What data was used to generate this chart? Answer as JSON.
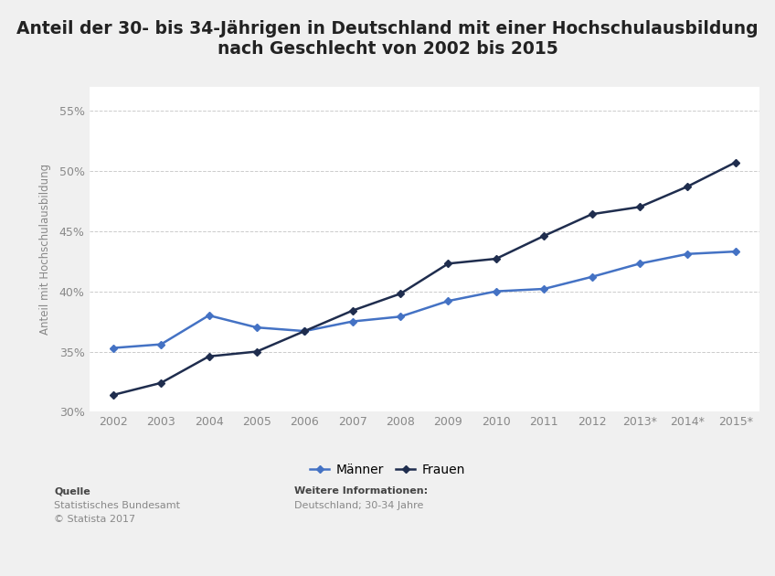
{
  "title_line1": "Anteil der 30- bis 34-Jährigen in Deutschland mit einer Hochschulausbildung",
  "title_line2": "nach Geschlecht von 2002 bis 2015",
  "ylabel": "Anteil mit Hochschulausbildung",
  "years": [
    "2002",
    "2003",
    "2004",
    "2005",
    "2006",
    "2007",
    "2008",
    "2009",
    "2010",
    "2011",
    "2012",
    "2013*",
    "2014*",
    "2015*"
  ],
  "maenner": [
    35.3,
    35.6,
    38.0,
    37.0,
    36.7,
    37.5,
    37.9,
    39.2,
    40.0,
    40.2,
    41.2,
    42.3,
    43.1,
    43.3
  ],
  "frauen": [
    31.4,
    32.4,
    34.6,
    35.0,
    36.7,
    38.4,
    39.8,
    42.3,
    42.7,
    44.6,
    46.4,
    47.0,
    48.7,
    50.7
  ],
  "maenner_color": "#4472C4",
  "frauen_color": "#1F2D4E",
  "ylim_min": 30,
  "ylim_max": 57,
  "yticks": [
    30,
    35,
    40,
    45,
    50,
    55
  ],
  "background_color": "#F0F0F0",
  "plot_bg_color": "#FFFFFF",
  "grid_color": "#CCCCCC",
  "source_label": "Quelle",
  "source_text": "Statistisches Bundesamt\n© Statista 2017",
  "further_label": "Weitere Informationen:",
  "further_text": "Deutschland; 30-34 Jahre",
  "legend_maenner": "Männer",
  "legend_frauen": "Frauen",
  "title_fontsize": 13.5,
  "axis_label_fontsize": 8.5,
  "tick_fontsize": 9,
  "legend_fontsize": 10,
  "source_fontsize": 8
}
